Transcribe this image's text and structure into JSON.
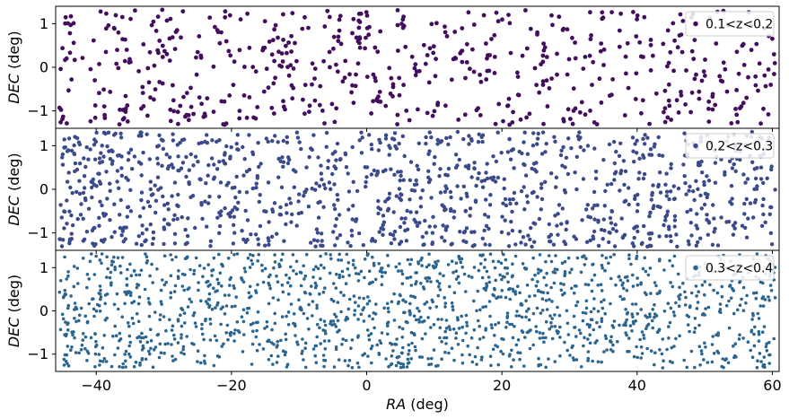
{
  "figure": {
    "xlabel_prefix": "RA",
    "xlabel_suffix": "(deg)"
  },
  "chart_data": [
    {
      "type": "scatter",
      "ylabel_prefix": "DEC",
      "ylabel_suffix": "(deg)",
      "legend": "0.1<z<0.2",
      "legend_position": "top-right",
      "color": "#440e5e",
      "marker_size": "large",
      "point_count": 600,
      "xlim": [
        -46,
        61
      ],
      "ylim": [
        -1.4,
        1.4
      ],
      "x_ticks": [
        -40,
        -20,
        0,
        20,
        40,
        60
      ],
      "x_tick_labels": [],
      "y_ticks": [
        -1,
        0,
        1
      ],
      "y_tick_labels": [
        "−1",
        "0",
        "1"
      ],
      "grid": false,
      "seed": 11
    },
    {
      "type": "scatter",
      "ylabel_prefix": "DEC",
      "ylabel_suffix": "(deg)",
      "legend": "0.2<z<0.3",
      "legend_position": "top-right",
      "color": "#3b4a8a",
      "marker_size": "medium",
      "point_count": 1150,
      "xlim": [
        -46,
        61
      ],
      "ylim": [
        -1.4,
        1.4
      ],
      "x_ticks": [
        -40,
        -20,
        0,
        20,
        40,
        60
      ],
      "x_tick_labels": [],
      "y_ticks": [
        -1,
        0,
        1
      ],
      "y_tick_labels": [
        "−1",
        "0",
        "1"
      ],
      "grid": false,
      "seed": 23
    },
    {
      "type": "scatter",
      "ylabel_prefix": "DEC",
      "ylabel_suffix": "(deg)",
      "legend": "0.3<z<0.4",
      "legend_position": "top-right",
      "color": "#2b6590",
      "marker_size": "small",
      "point_count": 1550,
      "xlim": [
        -46,
        61
      ],
      "ylim": [
        -1.4,
        1.4
      ],
      "x_ticks": [
        -40,
        -20,
        0,
        20,
        40,
        60
      ],
      "x_tick_labels": [
        "−40",
        "−20",
        "0",
        "20",
        "40",
        "60"
      ],
      "y_ticks": [
        -1,
        0,
        1
      ],
      "y_tick_labels": [
        "−1",
        "0",
        "1"
      ],
      "grid": false,
      "seed": 37
    }
  ]
}
